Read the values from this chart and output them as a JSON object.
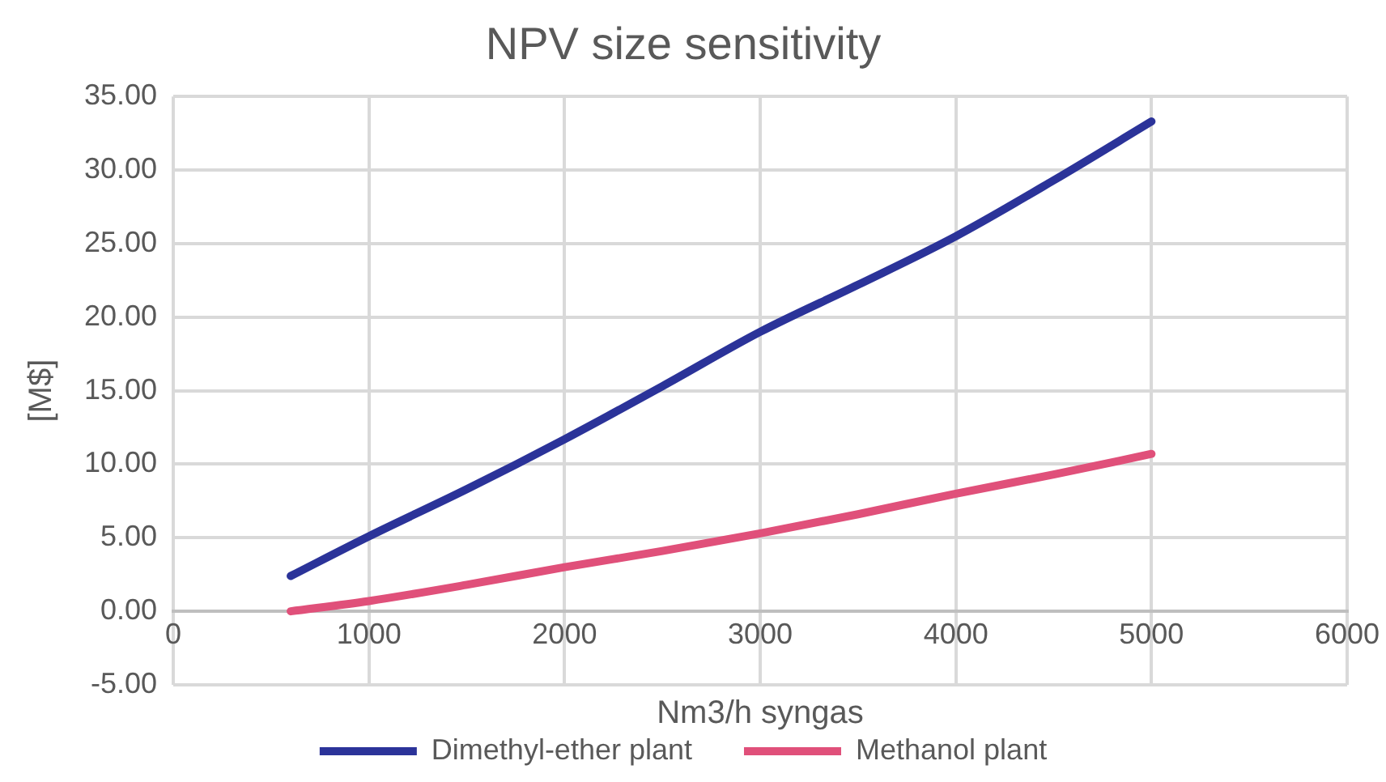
{
  "chart_data": {
    "type": "line",
    "title": "NPV size sensitivity",
    "xlabel": "Nm3/h syngas",
    "ylabel": "[M$]",
    "x": [
      600,
      1000,
      1500,
      2000,
      2500,
      3000,
      3500,
      4000,
      4500,
      5000
    ],
    "series": [
      {
        "name": "Dimethyl-ether plant",
        "color": "#2b3399",
        "values": [
          2.4,
          5.1,
          8.3,
          11.7,
          15.3,
          19.0,
          22.2,
          25.5,
          29.3,
          33.3
        ]
      },
      {
        "name": "Methanol plant",
        "color": "#e0507a",
        "values": [
          0,
          0.7,
          1.8,
          3.0,
          4.1,
          5.3,
          6.6,
          8.0,
          9.3,
          10.7
        ]
      }
    ],
    "xlim": [
      0,
      6000
    ],
    "xticks": [
      0,
      1000,
      2000,
      3000,
      4000,
      5000,
      6000
    ],
    "ylim": [
      -5,
      35
    ],
    "yticks": [
      {
        "value": -5,
        "label": "-5.00"
      },
      {
        "value": 0,
        "label": "0.00"
      },
      {
        "value": 5,
        "label": "5.00"
      },
      {
        "value": 10,
        "label": "10.00"
      },
      {
        "value": 15,
        "label": "15.00"
      },
      {
        "value": 20,
        "label": "20.00"
      },
      {
        "value": 25,
        "label": "25.00"
      },
      {
        "value": 30,
        "label": "30.00"
      },
      {
        "value": 35,
        "label": "35.00"
      }
    ],
    "grid": true,
    "legend": "bottom",
    "marker": "none",
    "line_style": "solid"
  }
}
